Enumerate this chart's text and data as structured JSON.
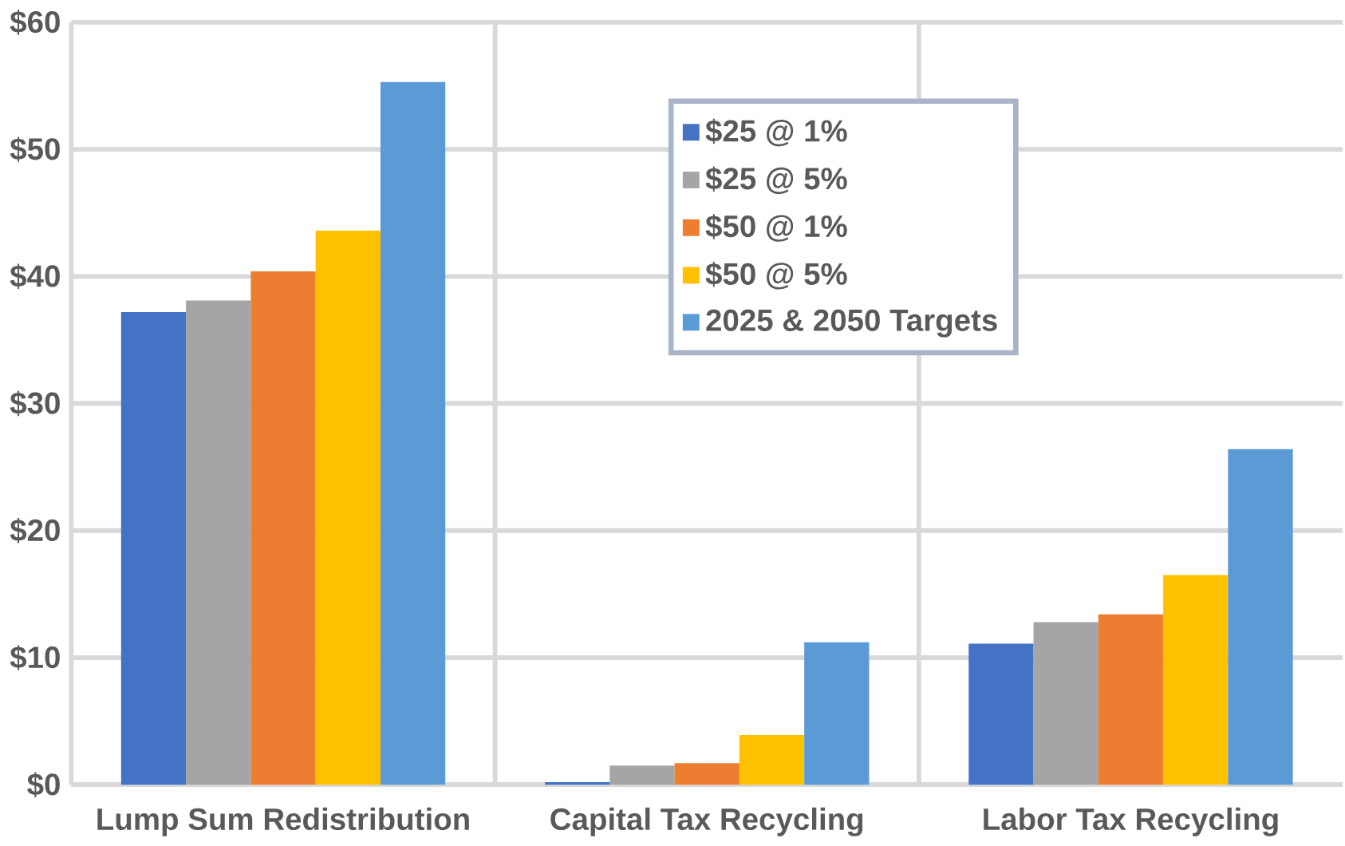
{
  "chart_data": {
    "type": "bar",
    "categories": [
      "Lump Sum Redistribution",
      "Capital Tax Recycling",
      "Labor Tax Recycling"
    ],
    "series": [
      {
        "name": "$25 @ 1%",
        "color": "#4472c4",
        "values": [
          37.2,
          0.2,
          11.1
        ]
      },
      {
        "name": "$25 @ 5%",
        "color": "#a5a5a5",
        "values": [
          38.1,
          1.5,
          12.8
        ]
      },
      {
        "name": "$50 @ 1%",
        "color": "#ed7d31",
        "values": [
          40.4,
          1.7,
          13.4
        ]
      },
      {
        "name": "$50 @ 5%",
        "color": "#ffc000",
        "values": [
          43.6,
          3.9,
          16.5
        ]
      },
      {
        "name": "2025 & 2050 Targets",
        "color": "#5b9bd5",
        "values": [
          55.3,
          11.2,
          26.4
        ]
      }
    ],
    "ylim": [
      0,
      60
    ],
    "yticks": [
      {
        "value": 0,
        "label": "$0"
      },
      {
        "value": 10,
        "label": "$10"
      },
      {
        "value": 20,
        "label": "$20"
      },
      {
        "value": 30,
        "label": "$30"
      },
      {
        "value": 40,
        "label": "$40"
      },
      {
        "value": 50,
        "label": "$50"
      },
      {
        "value": 60,
        "label": "$60"
      }
    ],
    "grid": true,
    "legend": "top right"
  }
}
